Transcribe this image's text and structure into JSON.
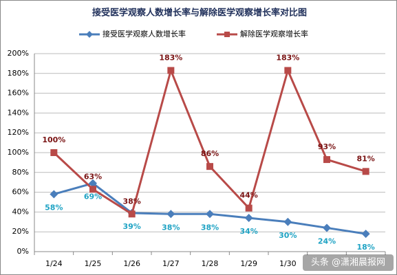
{
  "chart_data": {
    "type": "line",
    "title": "接受医学观察人数增长率与解除医学观察增长率对比图",
    "categories": [
      "1/24",
      "1/25",
      "1/26",
      "1/27",
      "1/28",
      "1/29",
      "1/30",
      null,
      null
    ],
    "series": [
      {
        "name": "接受医学观察人数增长率",
        "color": "#4a7ebb",
        "label_color": "#1fa3c4",
        "marker": "diamond",
        "values": [
          58,
          69,
          39,
          38,
          38,
          34,
          30,
          24,
          18
        ],
        "value_labels": [
          "58%",
          "69%",
          "39%",
          "38%",
          "38%",
          "34%",
          "30%",
          "24%",
          "18%"
        ]
      },
      {
        "name": "解除医学观察增长率",
        "color": "#b84a48",
        "label_color": "#7a1414",
        "marker": "square",
        "values": [
          100,
          63,
          38,
          183,
          86,
          44,
          183,
          93,
          81
        ],
        "value_labels": [
          "100%",
          "63%",
          "38%",
          "183%",
          "86%",
          "44%",
          "183%",
          "93%",
          "81%"
        ]
      }
    ],
    "ylim": [
      0,
      200
    ],
    "yticks": [
      {
        "value": 0,
        "label": "0%"
      },
      {
        "value": 20,
        "label": "20%"
      },
      {
        "value": 40,
        "label": "40%"
      },
      {
        "value": 60,
        "label": "60%"
      },
      {
        "value": 80,
        "label": "80%"
      },
      {
        "value": 100,
        "label": "100%"
      },
      {
        "value": 120,
        "label": "120%"
      },
      {
        "value": 140,
        "label": "140%"
      },
      {
        "value": 160,
        "label": "160%"
      },
      {
        "value": 180,
        "label": "180%"
      },
      {
        "value": 200,
        "label": "200%"
      }
    ],
    "grid": true,
    "legend": "top",
    "watermark": "头条 @潇湘晨报网"
  }
}
